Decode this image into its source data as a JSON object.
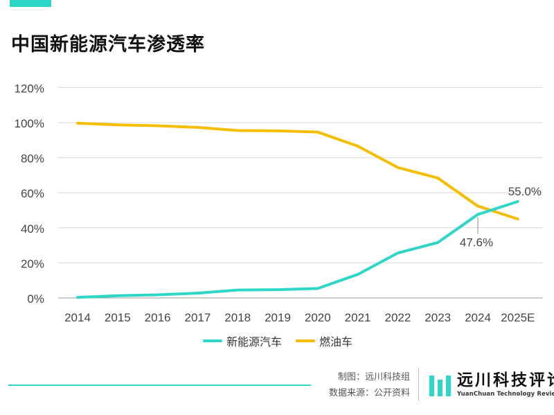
{
  "chart_data": {
    "type": "line",
    "title": "中国新能源汽车渗透率",
    "categories": [
      "2014",
      "2015",
      "2016",
      "2017",
      "2018",
      "2019",
      "2020",
      "2021",
      "2022",
      "2023",
      "2024",
      "2025E"
    ],
    "y_ticks": [
      "0%",
      "20%",
      "40%",
      "60%",
      "80%",
      "100%",
      "120%"
    ],
    "ylim": [
      0,
      120
    ],
    "grid": true,
    "legend_position": "bottom",
    "series": [
      {
        "name": "新能源汽车",
        "color": "#2ed6c8",
        "values": [
          0.3,
          1.3,
          1.8,
          2.7,
          4.5,
          4.7,
          5.4,
          13.4,
          25.6,
          31.6,
          47.6,
          55.0
        ]
      },
      {
        "name": "燃油车",
        "color": "#f5bd00",
        "values": [
          99.7,
          98.7,
          98.2,
          97.3,
          95.5,
          95.3,
          94.6,
          86.6,
          74.4,
          68.4,
          52.4,
          45.0
        ]
      }
    ],
    "annotations": [
      {
        "text": "55.0%",
        "series": 0,
        "category": "2025E"
      },
      {
        "text": "47.6%",
        "series": 0,
        "category": "2024"
      }
    ]
  },
  "footer": {
    "credit_line1": "制图：远川科技组",
    "credit_line2": "数据来源：公开资料",
    "logo_cn": "远川科技评论",
    "logo_en": "YuanChuan Technology Review",
    "accent_color": "#2ed6c8"
  }
}
